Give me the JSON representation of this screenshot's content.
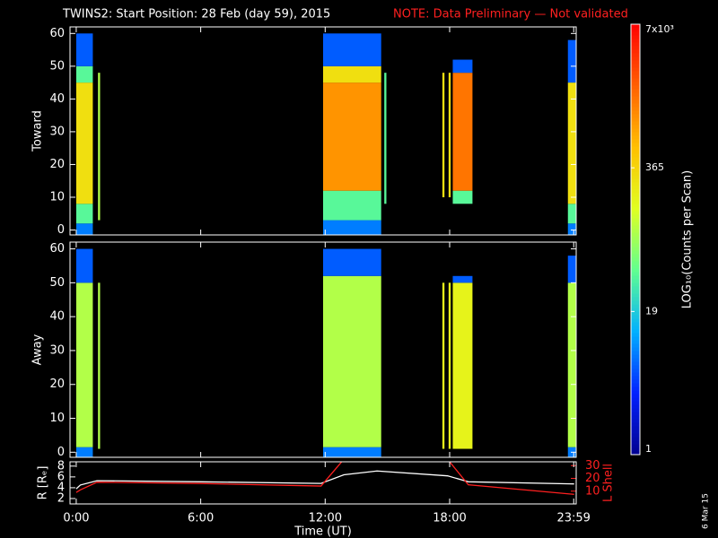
{
  "header": {
    "title": "TWINS2: Start Position: 28 Feb (day  59), 2015",
    "note": "NOTE: Data Preliminary — Not validated",
    "date": "6 Mar 15"
  },
  "colorbar": {
    "title": "LOG₁₀(Counts per Scan)",
    "log": true,
    "lim": [
      1,
      7000
    ],
    "ticks": [
      {
        "value": 7000,
        "label": "7x10³"
      },
      365,
      19,
      1
    ],
    "colors": [
      "#000090",
      "#0020ff",
      "#00b0ff",
      "#60ff90",
      "#e0ff20",
      "#ffc000",
      "#ff6000",
      "#ff0000"
    ]
  },
  "chart_data": [
    {
      "type": "heatmap",
      "ylabel": "Toward",
      "ylim": [
        -1.5,
        62
      ],
      "yticks": [
        0,
        10,
        20,
        30,
        40,
        50,
        60
      ],
      "blocks": [
        {
          "x": [
            0,
            0.8
          ],
          "y": [
            -1.5,
            2
          ],
          "value": 8
        },
        {
          "x": [
            0,
            0.8
          ],
          "y": [
            2,
            8
          ],
          "value": 40
        },
        {
          "x": [
            0,
            0.8
          ],
          "y": [
            8,
            45
          ],
          "value": 300
        },
        {
          "x": [
            0,
            0.8
          ],
          "y": [
            45,
            50
          ],
          "value": 40
        },
        {
          "x": [
            0,
            0.8
          ],
          "y": [
            50,
            60
          ],
          "value": 6
        },
        {
          "x": [
            1.05,
            1.15
          ],
          "y": [
            3,
            48
          ],
          "value": 100
        },
        {
          "x": [
            11.9,
            14.7
          ],
          "y": [
            -1.5,
            3
          ],
          "value": 8
        },
        {
          "x": [
            11.9,
            14.7
          ],
          "y": [
            3,
            12
          ],
          "value": 40
        },
        {
          "x": [
            11.9,
            14.7
          ],
          "y": [
            12,
            45
          ],
          "value": 1000
        },
        {
          "x": [
            11.9,
            14.7
          ],
          "y": [
            45,
            50
          ],
          "value": 300
        },
        {
          "x": [
            11.9,
            14.7
          ],
          "y": [
            50,
            60
          ],
          "value": 6
        },
        {
          "x": [
            14.85,
            14.95
          ],
          "y": [
            8,
            48
          ],
          "value": 40
        },
        {
          "x": [
            17.65,
            17.75
          ],
          "y": [
            10,
            48
          ],
          "value": 300
        },
        {
          "x": [
            17.95,
            18.05
          ],
          "y": [
            10,
            48
          ],
          "value": 300
        },
        {
          "x": [
            18.15,
            19.1
          ],
          "y": [
            8,
            12
          ],
          "value": 40
        },
        {
          "x": [
            18.15,
            19.1
          ],
          "y": [
            12,
            48
          ],
          "value": 1500
        },
        {
          "x": [
            18.15,
            19.1
          ],
          "y": [
            48,
            52
          ],
          "value": 6
        },
        {
          "x": [
            23.7,
            24.1
          ],
          "y": [
            -1.5,
            2
          ],
          "value": 8
        },
        {
          "x": [
            23.7,
            24.1
          ],
          "y": [
            2,
            8
          ],
          "value": 40
        },
        {
          "x": [
            23.7,
            24.1
          ],
          "y": [
            8,
            45
          ],
          "value": 300
        },
        {
          "x": [
            23.7,
            24.1
          ],
          "y": [
            45,
            58
          ],
          "value": 6
        }
      ]
    },
    {
      "type": "heatmap",
      "ylabel": "Away",
      "ylim": [
        -1.5,
        62
      ],
      "yticks": [
        0,
        10,
        20,
        30,
        40,
        50,
        60
      ],
      "blocks": [
        {
          "x": [
            0,
            0.8
          ],
          "y": [
            -1.5,
            1.5
          ],
          "value": 8
        },
        {
          "x": [
            0,
            0.8
          ],
          "y": [
            1.5,
            50
          ],
          "value": 100
        },
        {
          "x": [
            0,
            0.8
          ],
          "y": [
            50,
            60
          ],
          "value": 6
        },
        {
          "x": [
            1.05,
            1.15
          ],
          "y": [
            1,
            50
          ],
          "value": 100
        },
        {
          "x": [
            11.9,
            14.7
          ],
          "y": [
            -1.5,
            1.5
          ],
          "value": 8
        },
        {
          "x": [
            11.9,
            14.7
          ],
          "y": [
            1.5,
            52
          ],
          "value": 100
        },
        {
          "x": [
            11.9,
            14.7
          ],
          "y": [
            52,
            60
          ],
          "value": 6
        },
        {
          "x": [
            17.65,
            17.75
          ],
          "y": [
            1,
            50
          ],
          "value": 200
        },
        {
          "x": [
            17.95,
            18.05
          ],
          "y": [
            1,
            50
          ],
          "value": 200
        },
        {
          "x": [
            18.15,
            19.1
          ],
          "y": [
            1,
            50
          ],
          "value": 200
        },
        {
          "x": [
            18.15,
            19.1
          ],
          "y": [
            50,
            52
          ],
          "value": 6
        },
        {
          "x": [
            23.7,
            24.1
          ],
          "y": [
            -1.5,
            1.5
          ],
          "value": 8
        },
        {
          "x": [
            23.7,
            24.1
          ],
          "y": [
            1.5,
            50
          ],
          "value": 100
        },
        {
          "x": [
            23.7,
            24.1
          ],
          "y": [
            50,
            58
          ],
          "value": 6
        }
      ]
    },
    {
      "type": "line",
      "xlabel": "Time (UT)",
      "ylabel": "R [Rₑ]",
      "y2label": "L Shell",
      "xlim": [
        -0.3,
        24.1
      ],
      "ylim": [
        1,
        8.8
      ],
      "y2lim": [
        0,
        33
      ],
      "xticks": [
        {
          "value": 0,
          "label": "0:00"
        },
        {
          "value": 6,
          "label": "6:00"
        },
        {
          "value": 12,
          "label": "12:00"
        },
        {
          "value": 18,
          "label": "18:00"
        },
        {
          "value": 23.98,
          "label": "23:59"
        }
      ],
      "yticks": [
        2,
        4,
        6,
        8
      ],
      "y2ticks": [
        10,
        20,
        30
      ],
      "x": [
        0,
        0.2,
        1.0,
        6,
        11.8,
        12.9,
        14.5,
        17.9,
        18.9,
        24
      ],
      "series": [
        {
          "name": "R",
          "color": "#ffffff",
          "values": [
            3.8,
            4.5,
            5.3,
            5.1,
            4.8,
            6.4,
            7.1,
            6.2,
            5.1,
            4.7
          ]
        },
        {
          "name": "L Shell",
          "color": "#ff2020",
          "axis": "y2",
          "values": [
            9,
            11,
            17,
            16,
            14,
            35,
            null,
            35,
            15,
            7.5
          ]
        }
      ]
    }
  ]
}
